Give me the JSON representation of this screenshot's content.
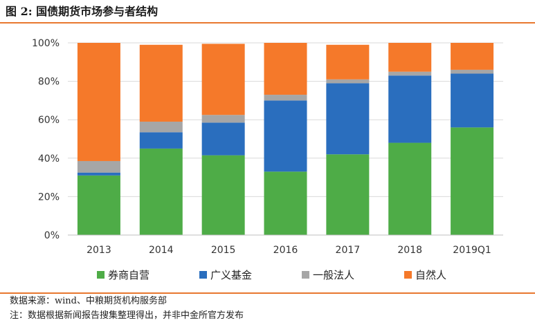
{
  "figure_title": "图 2:  国债期货市场参与者结构",
  "source_note": "数据来源：wind、中粮期货机构服务部",
  "remark_note": "注：数据根据新闻报告搜集整理得出，并非中金所官方发布",
  "chart_data": {
    "type": "bar",
    "stacked": true,
    "title": "",
    "xlabel": "",
    "ylabel": "",
    "ylim": [
      0,
      100
    ],
    "y_ticks": [
      "0%",
      "20%",
      "40%",
      "60%",
      "80%",
      "100%"
    ],
    "y_tick_values": [
      0,
      20,
      40,
      60,
      80,
      100
    ],
    "categories": [
      "2013",
      "2014",
      "2015",
      "2016",
      "2017",
      "2018",
      "2019Q1"
    ],
    "grid": true,
    "legend_position": "bottom",
    "series": [
      {
        "name": "券商自营",
        "color": "#4eac47",
        "values": [
          31,
          45,
          41.5,
          33,
          42,
          48,
          56
        ]
      },
      {
        "name": "广义基金",
        "color": "#2a6ebe",
        "values": [
          1.5,
          8.5,
          17,
          37,
          37,
          35,
          28
        ]
      },
      {
        "name": "一般法人",
        "color": "#a6a6a6",
        "values": [
          6,
          5.5,
          4,
          3,
          2,
          2,
          2
        ]
      },
      {
        "name": "自然人",
        "color": "#f5792a",
        "values": [
          61.5,
          40,
          37,
          27,
          18,
          15,
          14
        ]
      }
    ]
  }
}
